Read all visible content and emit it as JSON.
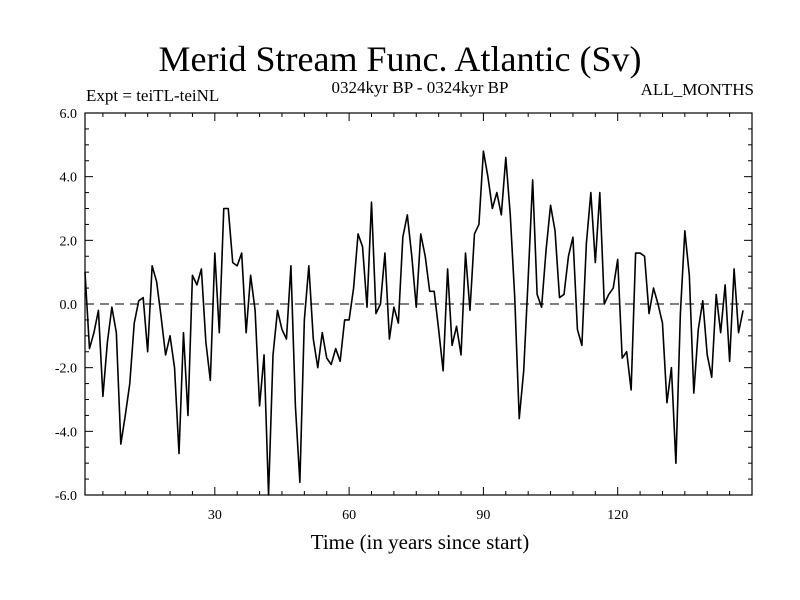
{
  "figure": {
    "title": "Merid Stream Func. Atlantic (Sv)",
    "expt_label": "Expt = teiTL-teiNL",
    "period_label": "0324kyr BP - 0324kyr BP",
    "season_label": "ALL_MONTHS"
  },
  "chart_data": {
    "type": "line",
    "title": "Merid Stream Func. Atlantic (Sv)",
    "xlabel": "Time (in years since start)",
    "ylabel": "",
    "xlim": [
      1,
      150
    ],
    "ylim": [
      -6,
      6
    ],
    "x_ticks": [
      30,
      60,
      90,
      120
    ],
    "y_ticks": [
      -6,
      -4,
      -2,
      0,
      2,
      4,
      6
    ],
    "y_tick_labels": [
      "-6.0",
      "-4.0",
      "-2.0",
      "0.0",
      "2.0",
      "4.0",
      "6.0"
    ],
    "zero_line": {
      "style": "dashed",
      "y": 0
    },
    "grid": false,
    "series": [
      {
        "color": "#000000",
        "x_start": 1,
        "x_step": 1,
        "values": [
          1.0,
          -1.4,
          -0.9,
          -0.2,
          -2.9,
          -1.2,
          -0.1,
          -0.9,
          -4.4,
          -3.5,
          -2.5,
          -0.6,
          0.1,
          0.2,
          -1.5,
          1.2,
          0.7,
          -0.4,
          -1.6,
          -1.0,
          -2.0,
          -4.7,
          -0.9,
          -3.5,
          0.9,
          0.6,
          1.1,
          -1.2,
          -2.4,
          1.6,
          -0.9,
          3.0,
          3.0,
          1.3,
          1.2,
          1.6,
          -0.9,
          0.9,
          -0.2,
          -3.2,
          -1.6,
          -6.0,
          -1.6,
          -0.2,
          -0.8,
          -1.1,
          1.2,
          -3.2,
          -5.6,
          -0.5,
          1.2,
          -1.1,
          -2.0,
          -0.9,
          -1.7,
          -1.9,
          -1.4,
          -1.8,
          -0.5,
          -0.5,
          0.5,
          2.2,
          1.8,
          -0.1,
          3.2,
          -0.3,
          0.0,
          1.6,
          -1.1,
          -0.1,
          -0.6,
          2.1,
          2.8,
          1.5,
          -0.1,
          2.2,
          1.5,
          0.4,
          0.4,
          -0.8,
          -2.1,
          1.1,
          -1.3,
          -0.7,
          -1.6,
          1.6,
          -0.2,
          2.2,
          2.5,
          4.8,
          4.0,
          3.0,
          3.5,
          2.8,
          4.6,
          2.8,
          0.2,
          -3.6,
          -2.1,
          0.8,
          3.9,
          0.3,
          -0.1,
          1.7,
          3.1,
          2.3,
          0.2,
          0.3,
          1.5,
          2.1,
          -0.8,
          -1.3,
          1.9,
          3.5,
          1.3,
          3.5,
          0.0,
          0.3,
          0.5,
          1.4,
          -1.7,
          -1.5,
          -2.7,
          1.6,
          1.6,
          1.5,
          -0.3,
          0.5,
          0.0,
          -0.6,
          -3.1,
          -2.0,
          -5.0,
          -0.3,
          2.3,
          0.9,
          -2.8,
          -0.8,
          0.1,
          -1.6,
          -2.3,
          0.3,
          -0.9,
          0.6,
          -1.8,
          1.1,
          -0.9,
          -0.2
        ]
      }
    ]
  }
}
